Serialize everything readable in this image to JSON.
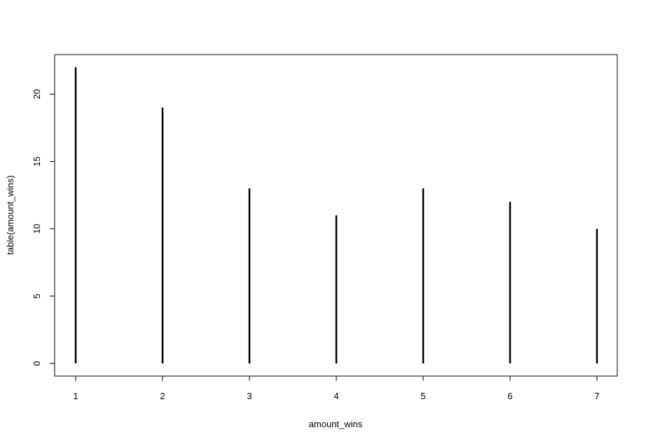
{
  "chart_data": {
    "type": "bar",
    "style": "vertical-lines",
    "xlabel": "amount_wins",
    "ylabel": "table(amount_wins)",
    "categories": [
      "1",
      "2",
      "3",
      "4",
      "5",
      "6",
      "7"
    ],
    "values": [
      22,
      19,
      13,
      11,
      13,
      12,
      10
    ],
    "x_ticks": [
      "1",
      "2",
      "3",
      "4",
      "5",
      "6",
      "7"
    ],
    "y_ticks": [
      0,
      5,
      10,
      15,
      20
    ],
    "ylim": [
      0,
      22
    ],
    "grid": false,
    "line_color": "#000000"
  }
}
